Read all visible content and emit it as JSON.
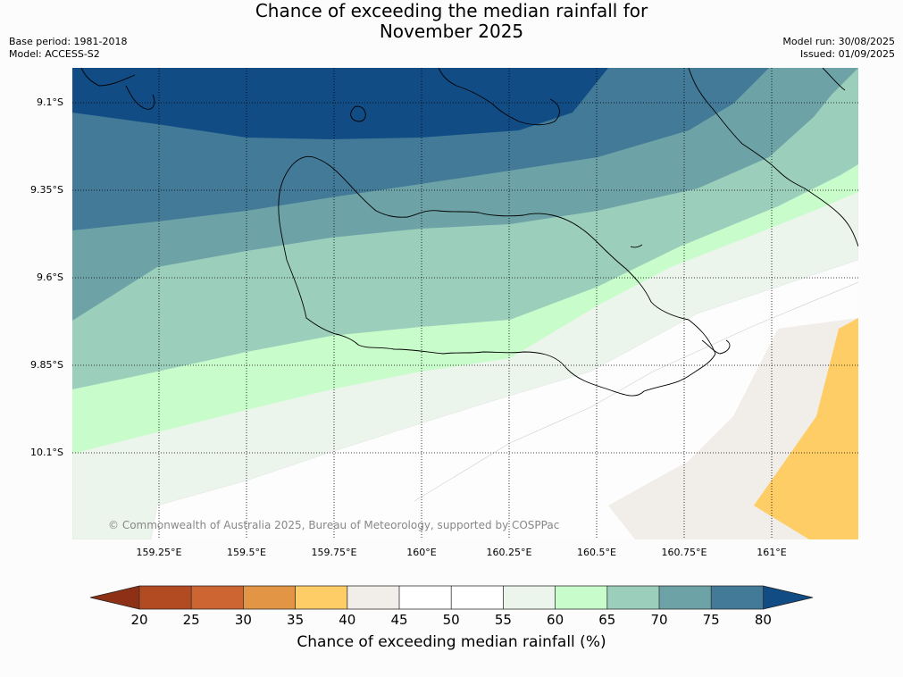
{
  "title": {
    "line1": "Chance of exceeding the median rainfall for",
    "line2": "November 2025"
  },
  "meta": {
    "base_period": "Base period: 1981-2018",
    "model": "Model: ACCESS-S2",
    "model_run": "Model run: 30/08/2025",
    "issued": "Issued: 01/09/2025"
  },
  "map": {
    "lat_labels": [
      "9.1°S",
      "9.35°S",
      "9.6°S",
      "9.85°S",
      "10.1°S"
    ],
    "lon_labels": [
      "159.25°E",
      "159.5°E",
      "159.75°E",
      "160°E",
      "160.25°E",
      "160.5°E",
      "160.75°E",
      "161°E"
    ],
    "copyright": "© Commonwealth of Australia 2025, Bureau of Meteorology, supported by COSPPac"
  },
  "legend": {
    "label": "Chance of exceeding median rainfall (%)",
    "ticks": [
      "20",
      "25",
      "30",
      "35",
      "40",
      "45",
      "50",
      "55",
      "60",
      "65",
      "70",
      "75",
      "80"
    ],
    "colors": {
      "lt20": "#8e3016",
      "20-25": "#b24a22",
      "25-30": "#cc6532",
      "30-35": "#e19545",
      "35-40": "#fecd66",
      "40-45": "#f1ede8",
      "45-50": "#ffffff",
      "50-55": "#ffffff",
      "55-60": "#ebf5eb",
      "60-65": "#c9fccb",
      "65-70": "#9ccfbb",
      "70-75": "#6da3a6",
      "75-80": "#427a98",
      "gt80": "#124c85"
    }
  }
}
